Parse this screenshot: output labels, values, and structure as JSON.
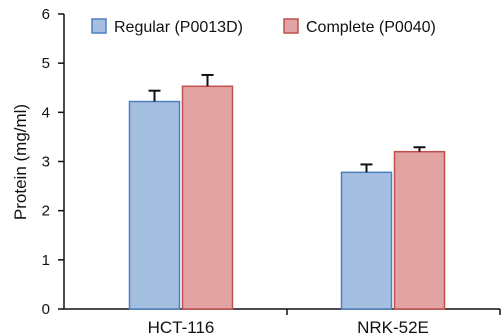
{
  "chart_data": {
    "type": "bar",
    "title": "",
    "xlabel": "",
    "ylabel": "Protein (mg/ml)",
    "ylim": [
      0,
      6
    ],
    "yticks": [
      0,
      1,
      2,
      3,
      4,
      5,
      6
    ],
    "grid": false,
    "legend_position": "top",
    "error_bars": true,
    "categories": [
      "HCT-116",
      "NRK-52E"
    ],
    "series": [
      {
        "name": "Regular (P0013D)",
        "values": [
          4.22,
          2.78
        ],
        "errors": [
          0.22,
          0.16
        ],
        "fill": "#a4bfe0",
        "stroke": "#4f7fbf"
      },
      {
        "name": "Complete (P0040)",
        "values": [
          4.53,
          3.2
        ],
        "errors": [
          0.23,
          0.09
        ],
        "fill": "#e2a3a3",
        "stroke": "#c0504d"
      }
    ],
    "axis_color": "#111111"
  }
}
